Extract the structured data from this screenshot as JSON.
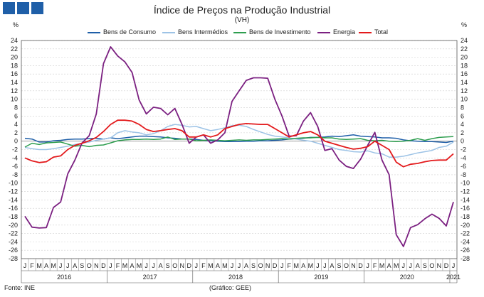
{
  "header": {
    "title": "Índice de Preços na Produção Industrial",
    "subtitle": "(VH)",
    "unit_left": "%",
    "unit_right": "%"
  },
  "footer": {
    "source": "Fonte: INE",
    "credit": "(Gráfico: GEE)"
  },
  "chart_data": {
    "type": "line",
    "title": "Índice de Preços na Produção Industrial",
    "subtitle": "(VH)",
    "ylabel": "%",
    "ylim": [
      -28,
      24
    ],
    "yticks": [
      24,
      22,
      20,
      18,
      16,
      14,
      12,
      10,
      8,
      6,
      4,
      2,
      0,
      -2,
      -4,
      -6,
      -8,
      -10,
      -12,
      -14,
      -16,
      -18,
      -20,
      -22,
      -24,
      -26,
      -28
    ],
    "grid": true,
    "legend_position": "top",
    "x": [
      "J",
      "F",
      "M",
      "A",
      "M",
      "J",
      "J",
      "A",
      "S",
      "O",
      "N",
      "D",
      "J",
      "F",
      "M",
      "A",
      "M",
      "J",
      "J",
      "A",
      "S",
      "O",
      "N",
      "D",
      "J",
      "F",
      "M",
      "A",
      "M",
      "J",
      "J",
      "A",
      "S",
      "O",
      "N",
      "D",
      "J",
      "F",
      "M",
      "A",
      "M",
      "J",
      "J",
      "A",
      "S",
      "O",
      "N",
      "D",
      "J",
      "F",
      "M",
      "A",
      "M",
      "J",
      "J",
      "A",
      "S",
      "O",
      "N",
      "D",
      "J"
    ],
    "year_labels": [
      {
        "year": "2016",
        "start": 0,
        "end": 11
      },
      {
        "year": "2017",
        "start": 12,
        "end": 23
      },
      {
        "year": "2018",
        "start": 24,
        "end": 35
      },
      {
        "year": "2019",
        "start": 36,
        "end": 47
      },
      {
        "year": "2020",
        "start": 48,
        "end": 59
      },
      {
        "year": "2021",
        "start": 60,
        "end": 60
      }
    ],
    "series": [
      {
        "name": "Bens de Consumo",
        "color": "#1f5fa8",
        "values": [
          0.7,
          0.5,
          -0.2,
          -0.2,
          0.1,
          0.2,
          0.4,
          0.5,
          0.5,
          0.6,
          0.7,
          0.5,
          0.8,
          0.6,
          0.8,
          1.0,
          1.2,
          1.2,
          1.1,
          1.0,
          0.8,
          0.7,
          0.5,
          0.5,
          0.4,
          0.2,
          0.1,
          0.0,
          -0.1,
          -0.1,
          -0.1,
          0.0,
          0.0,
          0.1,
          0.1,
          0.2,
          0.3,
          0.5,
          0.6,
          0.7,
          0.9,
          0.9,
          1.0,
          1.2,
          1.1,
          1.3,
          1.5,
          1.2,
          1.1,
          1.0,
          0.8,
          0.8,
          0.7,
          0.3,
          0.1,
          0.0,
          -0.1,
          -0.1,
          -0.2,
          -0.3,
          0.0
        ]
      },
      {
        "name": "Bens Intermédios",
        "color": "#9dc3e6",
        "values": [
          -1.5,
          -1.8,
          -2.0,
          -2.0,
          -1.8,
          -1.5,
          -1.2,
          -0.8,
          -0.5,
          -0.2,
          0.2,
          0.5,
          0.8,
          2.0,
          2.5,
          2.2,
          2.0,
          1.5,
          1.8,
          2.5,
          3.5,
          4.0,
          3.8,
          3.4,
          3.5,
          3.0,
          2.5,
          2.8,
          3.2,
          3.7,
          3.8,
          3.5,
          2.8,
          2.2,
          1.6,
          1.2,
          1.0,
          0.8,
          0.5,
          0.2,
          0.0,
          -0.5,
          -1.0,
          -1.5,
          -2.0,
          -2.2,
          -2.5,
          -2.6,
          -2.3,
          -2.8,
          -3.0,
          -3.8,
          -3.8,
          -3.6,
          -3.2,
          -2.8,
          -2.5,
          -2.2,
          -1.5,
          -1.2,
          -0.2
        ]
      },
      {
        "name": "Bens de Investimento",
        "color": "#2e9e4f",
        "values": [
          -1.4,
          -0.5,
          -0.8,
          -0.4,
          -0.3,
          -0.2,
          -0.7,
          -1.2,
          -1.0,
          -1.3,
          -1.0,
          -0.9,
          -0.4,
          0.1,
          0.3,
          0.4,
          0.4,
          0.5,
          0.4,
          0.5,
          1.0,
          0.4,
          0.5,
          0.5,
          0.1,
          0.2,
          0.3,
          0.2,
          0.1,
          0.2,
          0.3,
          0.2,
          0.3,
          0.3,
          0.4,
          0.5,
          0.6,
          0.5,
          0.7,
          0.8,
          0.8,
          0.9,
          0.8,
          0.8,
          0.5,
          0.4,
          0.5,
          0.6,
          0.2,
          0.1,
          0.2,
          0.0,
          -0.1,
          0.0,
          0.2,
          0.6,
          0.2,
          0.6,
          0.9,
          1.0,
          1.1
        ]
      },
      {
        "name": "Energia",
        "color": "#7b2081",
        "values": [
          -17.9,
          -20.5,
          -20.7,
          -20.6,
          -15.8,
          -14.5,
          -7.8,
          -4.5,
          -0.4,
          1.3,
          6.5,
          18.5,
          22.5,
          20.3,
          18.9,
          16.4,
          9.8,
          6.5,
          8.1,
          7.8,
          6.3,
          7.8,
          4.0,
          -0.5,
          1.0,
          1.5,
          -0.5,
          0.3,
          2.0,
          9.5,
          12.0,
          14.5,
          15.1,
          15.1,
          15.0,
          10.0,
          6.0,
          1.2,
          1.3,
          4.8,
          6.8,
          3.5,
          -2.2,
          -1.8,
          -4.5,
          -6.0,
          -6.5,
          -4.3,
          -1.0,
          2.1,
          -4.5,
          -8.0,
          -22.3,
          -25.1,
          -20.6,
          -19.9,
          -18.5,
          -17.4,
          -18.4,
          -20.2,
          -14.5
        ]
      },
      {
        "name": "Total",
        "color": "#e31a1c",
        "values": [
          -4.0,
          -4.7,
          -5.1,
          -4.9,
          -3.8,
          -3.5,
          -2.0,
          -1.0,
          -0.5,
          0.1,
          0.9,
          2.3,
          4.0,
          5.0,
          5.0,
          4.8,
          4.0,
          2.8,
          2.3,
          2.5,
          2.8,
          3.0,
          2.5,
          1.0,
          1.0,
          1.5,
          1.0,
          1.5,
          3.0,
          3.5,
          4.0,
          4.2,
          4.1,
          4.0,
          4.0,
          3.0,
          2.0,
          1.0,
          1.5,
          2.0,
          2.3,
          1.5,
          0.0,
          -0.5,
          -1.0,
          -1.5,
          -1.9,
          -1.7,
          -1.3,
          0.0,
          -1.0,
          -2.0,
          -5.0,
          -6.1,
          -5.5,
          -5.3,
          -4.9,
          -4.6,
          -4.5,
          -4.5,
          -3.0
        ]
      }
    ]
  }
}
